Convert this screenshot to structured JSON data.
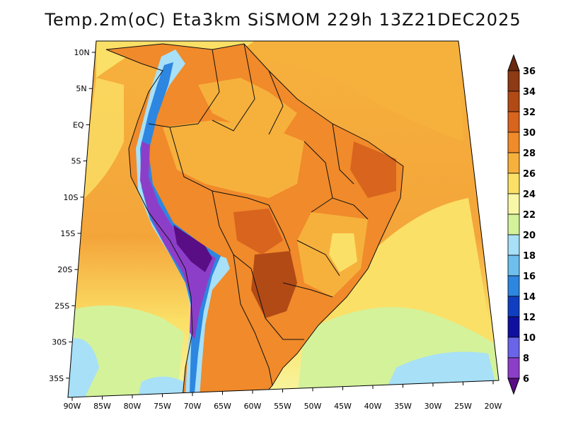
{
  "title": "Temp.2m(oC) Eta3km SiSMOM 229h 13Z21DEC2025",
  "map": {
    "lat_ticks": [
      "10N",
      "5N",
      "EQ",
      "5S",
      "10S",
      "15S",
      "20S",
      "25S",
      "30S",
      "35S"
    ],
    "lon_ticks": [
      "90W",
      "85W",
      "80W",
      "75W",
      "70W",
      "65W",
      "60W",
      "55W",
      "50W",
      "45W",
      "40W",
      "35W",
      "30W",
      "25W",
      "20W"
    ]
  },
  "colorbar": {
    "labels": [
      "36",
      "34",
      "32",
      "30",
      "28",
      "26",
      "24",
      "22",
      "20",
      "18",
      "16",
      "14",
      "12",
      "10",
      "8",
      "6"
    ],
    "colors": [
      "#6b2a10",
      "#8e3a14",
      "#b24a16",
      "#d8641e",
      "#f08a2a",
      "#f6b13c",
      "#fbe067",
      "#f7f7a6",
      "#d4f29a",
      "#a7e0f7",
      "#6fbfee",
      "#2d86e0",
      "#0f3fc0",
      "#1010a0",
      "#6a64e8",
      "#8d3ec9",
      "#5a0e85"
    ]
  }
}
